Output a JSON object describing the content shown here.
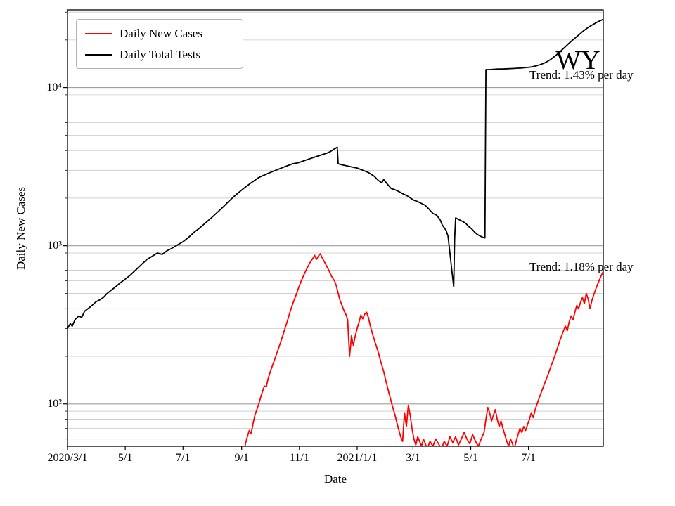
{
  "chart_data": {
    "type": "line",
    "watermark": "WY",
    "xlabel": "Date",
    "ylabel": "Daily New Cases",
    "y_scale": "log",
    "y_range": [
      54,
      31000
    ],
    "x_range_days": [
      0,
      566
    ],
    "grid": {
      "horizontal_only": true,
      "major_color": "#9f9f9f",
      "minor_color": "#c9c9c9"
    },
    "legend": {
      "position": "upper-left"
    },
    "x_ticks": [
      {
        "day": 0,
        "label": "2020/3/1"
      },
      {
        "day": 61,
        "label": "5/1"
      },
      {
        "day": 122,
        "label": "7/1"
      },
      {
        "day": 184,
        "label": "9/1"
      },
      {
        "day": 245,
        "label": "11/1"
      },
      {
        "day": 306,
        "label": "2021/1/1"
      },
      {
        "day": 365,
        "label": "3/1"
      },
      {
        "day": 426,
        "label": "5/1"
      },
      {
        "day": 487,
        "label": "7/1"
      }
    ],
    "y_ticks": [
      {
        "value": 100,
        "label": "10²"
      },
      {
        "value": 1000,
        "label": "10³"
      },
      {
        "value": 10000,
        "label": "10⁴"
      }
    ],
    "annotations": [
      {
        "text": "Trend: 1.43% per day",
        "target": "Daily Total Tests"
      },
      {
        "text": "Trend: 1.18% per day",
        "target": "Daily New Cases"
      }
    ],
    "series": [
      {
        "name": "Daily New Cases",
        "color": "#ff0000",
        "points": [
          [
            186,
            46
          ],
          [
            188,
            56
          ],
          [
            190,
            62
          ],
          [
            192,
            68
          ],
          [
            194,
            65
          ],
          [
            196,
            75
          ],
          [
            198,
            85
          ],
          [
            200,
            92
          ],
          [
            202,
            100
          ],
          [
            205,
            115
          ],
          [
            208,
            130
          ],
          [
            210,
            128
          ],
          [
            212,
            145
          ],
          [
            215,
            165
          ],
          [
            218,
            185
          ],
          [
            220,
            200
          ],
          [
            223,
            225
          ],
          [
            226,
            255
          ],
          [
            229,
            290
          ],
          [
            232,
            330
          ],
          [
            235,
            380
          ],
          [
            238,
            430
          ],
          [
            241,
            480
          ],
          [
            244,
            540
          ],
          [
            247,
            600
          ],
          [
            250,
            660
          ],
          [
            253,
            720
          ],
          [
            256,
            780
          ],
          [
            259,
            830
          ],
          [
            261,
            870
          ],
          [
            263,
            820
          ],
          [
            265,
            860
          ],
          [
            267,
            890
          ],
          [
            269,
            840
          ],
          [
            271,
            800
          ],
          [
            273,
            760
          ],
          [
            276,
            700
          ],
          [
            279,
            640
          ],
          [
            282,
            600
          ],
          [
            284,
            560
          ],
          [
            286,
            500
          ],
          [
            288,
            450
          ],
          [
            290,
            420
          ],
          [
            292,
            390
          ],
          [
            294,
            370
          ],
          [
            296,
            340
          ],
          [
            297,
            260
          ],
          [
            298,
            200
          ],
          [
            299,
            230
          ],
          [
            300,
            270
          ],
          [
            301,
            250
          ],
          [
            302,
            235
          ],
          [
            304,
            270
          ],
          [
            306,
            300
          ],
          [
            308,
            330
          ],
          [
            310,
            365
          ],
          [
            312,
            345
          ],
          [
            314,
            370
          ],
          [
            316,
            380
          ],
          [
            318,
            350
          ],
          [
            320,
            310
          ],
          [
            322,
            280
          ],
          [
            325,
            245
          ],
          [
            328,
            215
          ],
          [
            331,
            185
          ],
          [
            334,
            160
          ],
          [
            337,
            135
          ],
          [
            340,
            115
          ],
          [
            343,
            98
          ],
          [
            346,
            85
          ],
          [
            349,
            72
          ],
          [
            352,
            62
          ],
          [
            354,
            58
          ],
          [
            356,
            88
          ],
          [
            358,
            72
          ],
          [
            360,
            98
          ],
          [
            362,
            85
          ],
          [
            364,
            70
          ],
          [
            366,
            60
          ],
          [
            368,
            55
          ],
          [
            370,
            62
          ],
          [
            372,
            58
          ],
          [
            374,
            54
          ],
          [
            376,
            60
          ],
          [
            378,
            56
          ],
          [
            380,
            52
          ],
          [
            383,
            58
          ],
          [
            386,
            54
          ],
          [
            389,
            60
          ],
          [
            392,
            56
          ],
          [
            395,
            52
          ],
          [
            398,
            58
          ],
          [
            401,
            54
          ],
          [
            404,
            62
          ],
          [
            407,
            57
          ],
          [
            410,
            62
          ],
          [
            413,
            55
          ],
          [
            416,
            60
          ],
          [
            419,
            66
          ],
          [
            422,
            60
          ],
          [
            425,
            56
          ],
          [
            428,
            64
          ],
          [
            431,
            58
          ],
          [
            434,
            54
          ],
          [
            437,
            60
          ],
          [
            440,
            66
          ],
          [
            442,
            80
          ],
          [
            444,
            95
          ],
          [
            446,
            88
          ],
          [
            448,
            78
          ],
          [
            450,
            85
          ],
          [
            452,
            92
          ],
          [
            454,
            80
          ],
          [
            456,
            72
          ],
          [
            458,
            78
          ],
          [
            460,
            70
          ],
          [
            462,
            64
          ],
          [
            464,
            58
          ],
          [
            466,
            54
          ],
          [
            468,
            60
          ],
          [
            470,
            56
          ],
          [
            472,
            52
          ],
          [
            474,
            58
          ],
          [
            476,
            64
          ],
          [
            478,
            70
          ],
          [
            480,
            66
          ],
          [
            482,
            72
          ],
          [
            484,
            68
          ],
          [
            486,
            74
          ],
          [
            488,
            80
          ],
          [
            490,
            88
          ],
          [
            492,
            82
          ],
          [
            494,
            92
          ],
          [
            496,
            100
          ],
          [
            499,
            112
          ],
          [
            502,
            125
          ],
          [
            505,
            140
          ],
          [
            508,
            155
          ],
          [
            511,
            175
          ],
          [
            514,
            195
          ],
          [
            517,
            220
          ],
          [
            520,
            250
          ],
          [
            523,
            280
          ],
          [
            526,
            310
          ],
          [
            528,
            290
          ],
          [
            530,
            330
          ],
          [
            532,
            360
          ],
          [
            534,
            340
          ],
          [
            536,
            380
          ],
          [
            538,
            420
          ],
          [
            540,
            400
          ],
          [
            542,
            440
          ],
          [
            544,
            470
          ],
          [
            546,
            430
          ],
          [
            548,
            500
          ],
          [
            550,
            460
          ],
          [
            552,
            400
          ],
          [
            554,
            450
          ],
          [
            556,
            490
          ],
          [
            558,
            530
          ],
          [
            560,
            570
          ],
          [
            562,
            610
          ],
          [
            564,
            650
          ],
          [
            566,
            690
          ]
        ]
      },
      {
        "name": "Daily Total Tests",
        "color": "#000000",
        "points": [
          [
            0,
            300
          ],
          [
            3,
            322
          ],
          [
            5,
            310
          ],
          [
            8,
            342
          ],
          [
            12,
            360
          ],
          [
            15,
            352
          ],
          [
            18,
            385
          ],
          [
            22,
            402
          ],
          [
            26,
            420
          ],
          [
            30,
            442
          ],
          [
            34,
            455
          ],
          [
            38,
            472
          ],
          [
            42,
            500
          ],
          [
            46,
            522
          ],
          [
            50,
            545
          ],
          [
            55,
            578
          ],
          [
            61,
            615
          ],
          [
            66,
            650
          ],
          [
            72,
            702
          ],
          [
            78,
            760
          ],
          [
            84,
            820
          ],
          [
            90,
            862
          ],
          [
            95,
            900
          ],
          [
            100,
            882
          ],
          [
            105,
            930
          ],
          [
            110,
            962
          ],
          [
            116,
            1010
          ],
          [
            122,
            1060
          ],
          [
            128,
            1130
          ],
          [
            134,
            1220
          ],
          [
            140,
            1300
          ],
          [
            146,
            1400
          ],
          [
            152,
            1500
          ],
          [
            158,
            1620
          ],
          [
            164,
            1750
          ],
          [
            170,
            1900
          ],
          [
            176,
            2050
          ],
          [
            184,
            2250
          ],
          [
            190,
            2400
          ],
          [
            196,
            2550
          ],
          [
            202,
            2700
          ],
          [
            208,
            2800
          ],
          [
            214,
            2900
          ],
          [
            220,
            3000
          ],
          [
            226,
            3100
          ],
          [
            232,
            3200
          ],
          [
            238,
            3300
          ],
          [
            244,
            3350
          ],
          [
            250,
            3450
          ],
          [
            256,
            3550
          ],
          [
            262,
            3650
          ],
          [
            268,
            3750
          ],
          [
            274,
            3850
          ],
          [
            278,
            3950
          ],
          [
            282,
            4100
          ],
          [
            285,
            4200
          ],
          [
            286,
            3300
          ],
          [
            290,
            3250
          ],
          [
            295,
            3200
          ],
          [
            300,
            3150
          ],
          [
            306,
            3100
          ],
          [
            312,
            3000
          ],
          [
            318,
            2900
          ],
          [
            324,
            2750
          ],
          [
            328,
            2600
          ],
          [
            332,
            2500
          ],
          [
            334,
            2620
          ],
          [
            338,
            2450
          ],
          [
            342,
            2300
          ],
          [
            346,
            2260
          ],
          [
            350,
            2200
          ],
          [
            355,
            2120
          ],
          [
            360,
            2050
          ],
          [
            365,
            1950
          ],
          [
            370,
            1900
          ],
          [
            374,
            1850
          ],
          [
            378,
            1800
          ],
          [
            382,
            1700
          ],
          [
            386,
            1600
          ],
          [
            390,
            1560
          ],
          [
            394,
            1450
          ],
          [
            396,
            1350
          ],
          [
            398,
            1300
          ],
          [
            400,
            1250
          ],
          [
            402,
            1150
          ],
          [
            404,
            900
          ],
          [
            406,
            700
          ],
          [
            408,
            550
          ],
          [
            409,
            1100
          ],
          [
            410,
            1500
          ],
          [
            412,
            1480
          ],
          [
            415,
            1450
          ],
          [
            418,
            1420
          ],
          [
            421,
            1380
          ],
          [
            424,
            1320
          ],
          [
            427,
            1280
          ],
          [
            430,
            1220
          ],
          [
            433,
            1180
          ],
          [
            436,
            1150
          ],
          [
            439,
            1130
          ],
          [
            441,
            1120
          ],
          [
            442,
            13000
          ],
          [
            446,
            13000
          ],
          [
            450,
            13050
          ],
          [
            455,
            13100
          ],
          [
            460,
            13100
          ],
          [
            465,
            13150
          ],
          [
            470,
            13200
          ],
          [
            475,
            13250
          ],
          [
            480,
            13300
          ],
          [
            485,
            13400
          ],
          [
            490,
            13500
          ],
          [
            495,
            13700
          ],
          [
            500,
            14000
          ],
          [
            505,
            14400
          ],
          [
            510,
            15000
          ],
          [
            515,
            15800
          ],
          [
            520,
            16800
          ],
          [
            525,
            17900
          ],
          [
            530,
            19100
          ],
          [
            535,
            20300
          ],
          [
            540,
            21500
          ],
          [
            545,
            22800
          ],
          [
            550,
            24000
          ],
          [
            555,
            25000
          ],
          [
            560,
            26000
          ],
          [
            566,
            27000
          ]
        ]
      }
    ]
  }
}
